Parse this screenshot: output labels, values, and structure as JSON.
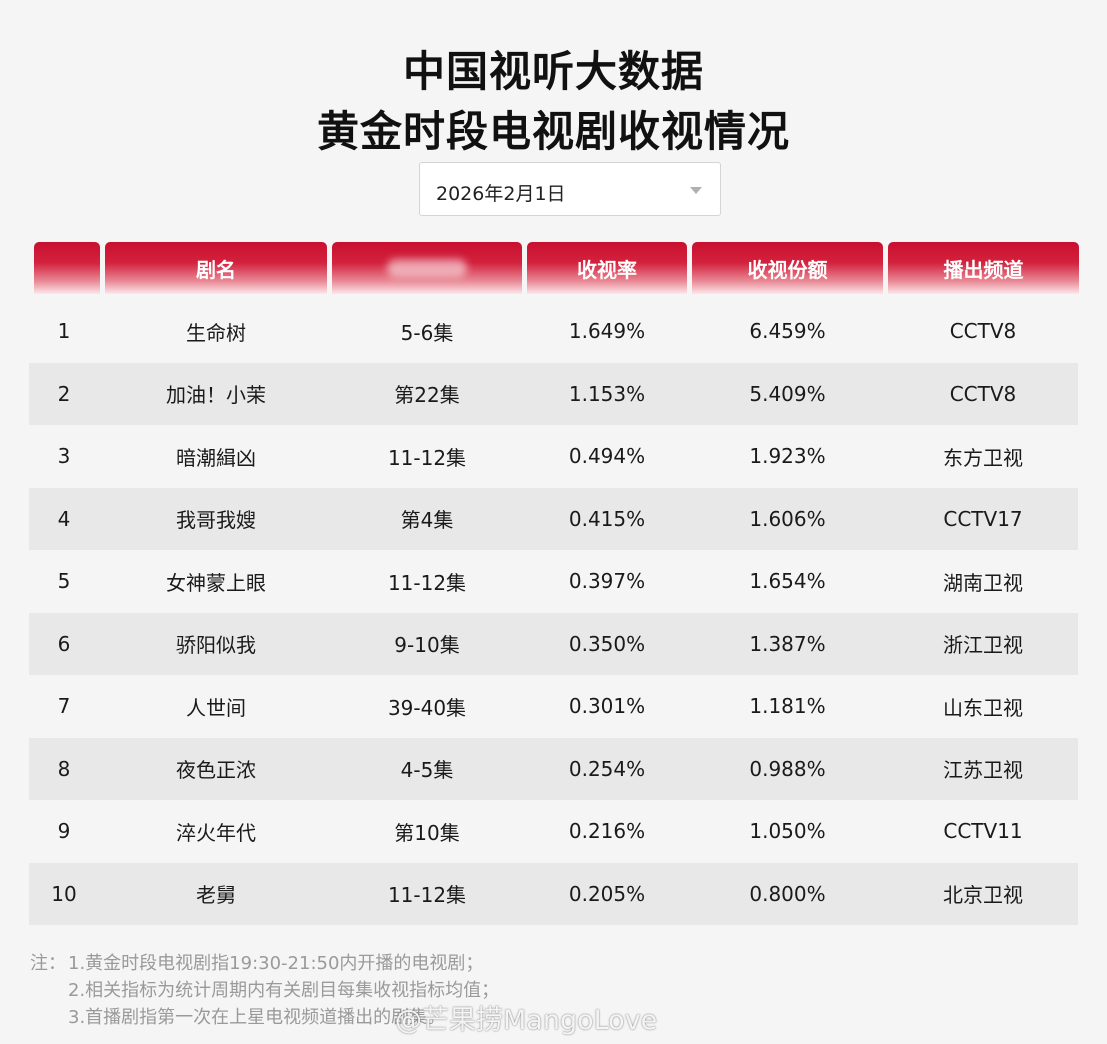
{
  "title": {
    "line1": "中国视听大数据",
    "line2": "黄金时段电视剧收视情况"
  },
  "date_select": {
    "value": "2026年2月1日",
    "icon": "chevron-down-icon"
  },
  "table": {
    "headers": [
      "",
      "剧名",
      "",
      "收视率",
      "收视份额",
      "播出频道"
    ],
    "rows": [
      {
        "rank": "1",
        "name": "生命树",
        "episodes": "5-6集",
        "rating": "1.649%",
        "share": "6.459%",
        "channel": "CCTV8"
      },
      {
        "rank": "2",
        "name": "加油！小茉",
        "episodes": "第22集",
        "rating": "1.153%",
        "share": "5.409%",
        "channel": "CCTV8"
      },
      {
        "rank": "3",
        "name": "暗潮緝凶",
        "episodes": "11-12集",
        "rating": "0.494%",
        "share": "1.923%",
        "channel": "东方卫视"
      },
      {
        "rank": "4",
        "name": "我哥我嫂",
        "episodes": "第4集",
        "rating": "0.415%",
        "share": "1.606%",
        "channel": "CCTV17"
      },
      {
        "rank": "5",
        "name": "女神蒙上眼",
        "episodes": "11-12集",
        "rating": "0.397%",
        "share": "1.654%",
        "channel": "湖南卫视"
      },
      {
        "rank": "6",
        "name": "骄阳似我",
        "episodes": "9-10集",
        "rating": "0.350%",
        "share": "1.387%",
        "channel": "浙江卫视"
      },
      {
        "rank": "7",
        "name": "人世间",
        "episodes": "39-40集",
        "rating": "0.301%",
        "share": "1.181%",
        "channel": "山东卫视"
      },
      {
        "rank": "8",
        "name": "夜色正浓",
        "episodes": "4-5集",
        "rating": "0.254%",
        "share": "0.988%",
        "channel": "江苏卫视"
      },
      {
        "rank": "9",
        "name": "淬火年代",
        "episodes": "第10集",
        "rating": "0.216%",
        "share": "1.050%",
        "channel": "CCTV11"
      },
      {
        "rank": "10",
        "name": "老舅",
        "episodes": "11-12集",
        "rating": "0.205%",
        "share": "0.800%",
        "channel": "北京卫视"
      }
    ]
  },
  "notes": {
    "label": "注：",
    "items": [
      "1.黄金时段电视剧指19:30-21:50内开播的电视剧；",
      "2.相关指标为统计周期内有关剧目每集收视指标均值；",
      "3.首播剧指第一次在上星电视频道播出的剧集。"
    ]
  },
  "watermark": "@芒果捞MangoLove",
  "colors": {
    "header_red": "#c8102e",
    "row_alt": "#e8e8e8",
    "background": "#f5f5f5"
  }
}
